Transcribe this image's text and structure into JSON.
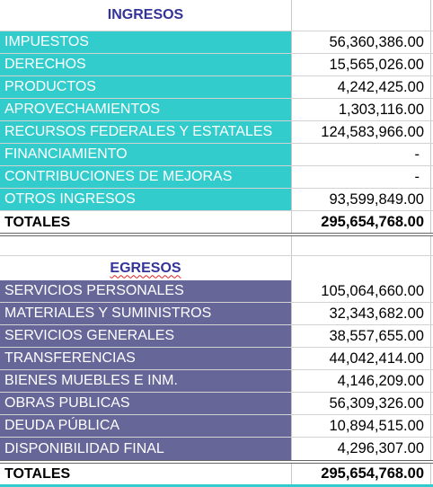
{
  "ingresos": {
    "title": "INGRESOS",
    "rows": [
      {
        "label": "IMPUESTOS",
        "value": "56,360,386.00"
      },
      {
        "label": "DERECHOS",
        "value": "15,565,026.00"
      },
      {
        "label": "PRODUCTOS",
        "value": "4,242,425.00"
      },
      {
        "label": "APROVECHAMIENTOS",
        "value": "1,303,116.00"
      },
      {
        "label": "RECURSOS FEDERALES Y ESTATALES",
        "value": "124,583,966.00"
      },
      {
        "label": "FINANCIAMIENTO",
        "value": "-"
      },
      {
        "label": "CONTRIBUCIONES DE MEJORAS",
        "value": "-"
      },
      {
        "label": "OTROS INGRESOS",
        "value": "93,599,849.00"
      }
    ],
    "total_label": "TOTALES",
    "total_value": "295,654,768.00"
  },
  "egresos": {
    "title": "EGRESOS",
    "rows": [
      {
        "label": "SERVICIOS PERSONALES",
        "value": "105,064,660.00"
      },
      {
        "label": "MATERIALES Y SUMINISTROS",
        "value": "32,343,682.00"
      },
      {
        "label": "SERVICIOS GENERALES",
        "value": "38,557,655.00"
      },
      {
        "label": "TRANSFERENCIAS",
        "value": "44,042,414.00"
      },
      {
        "label": "BIENES MUEBLES E INM.",
        "value": "4,146,209.00"
      },
      {
        "label": "OBRAS PUBLICAS",
        "value": "56,309,326.00"
      },
      {
        "label": "DEUDA PÚBLICA",
        "value": "10,894,515.00"
      },
      {
        "label": "DISPONIBILIDAD FINAL",
        "value": "4,296,307.00"
      }
    ],
    "total_label": "TOTALES",
    "total_value": "295,654,768.00"
  },
  "colors": {
    "ingresos_fill": "#33cccc",
    "egresos_fill": "#666699",
    "header_text": "#333399"
  }
}
